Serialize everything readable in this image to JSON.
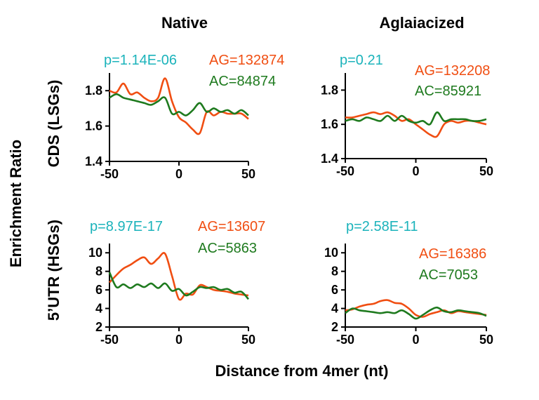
{
  "figure": {
    "col_titles": [
      "Native",
      "Aglaiacized"
    ],
    "row_titles": [
      "CDS (LSGs)",
      "5’UTR (HSGs)"
    ],
    "ylabel": "Enrichment Ratio",
    "xlabel": "Distance from 4mer (nt)"
  },
  "colors": {
    "AG": "#f04e12",
    "AC": "#1e7a1e",
    "pvalue": "#1bb3bb"
  },
  "chart_data": [
    {
      "type": "line",
      "id": "native-cds",
      "pvalue": "p=1.14E-06",
      "counts": [
        "AG=132874",
        "AC=84874"
      ],
      "xlim": [
        -50,
        50
      ],
      "ylim": [
        1.4,
        1.9
      ],
      "xticks": [
        -50,
        0,
        50
      ],
      "yticks": [
        1.4,
        1.6,
        1.8
      ],
      "x": [
        -50,
        -45,
        -40,
        -35,
        -30,
        -25,
        -20,
        -15,
        -10,
        -5,
        0,
        5,
        10,
        15,
        20,
        25,
        30,
        35,
        40,
        45,
        50
      ],
      "series": [
        {
          "name": "AG",
          "values": [
            1.8,
            1.79,
            1.84,
            1.78,
            1.79,
            1.76,
            1.74,
            1.76,
            1.87,
            1.74,
            1.65,
            1.62,
            1.58,
            1.56,
            1.68,
            1.66,
            1.68,
            1.67,
            1.67,
            1.67,
            1.64
          ]
        },
        {
          "name": "AC",
          "values": [
            1.76,
            1.78,
            1.76,
            1.75,
            1.74,
            1.73,
            1.72,
            1.74,
            1.76,
            1.67,
            1.68,
            1.66,
            1.69,
            1.73,
            1.68,
            1.7,
            1.68,
            1.69,
            1.67,
            1.69,
            1.66
          ]
        }
      ]
    },
    {
      "type": "line",
      "id": "aglaia-cds",
      "pvalue": "p=0.21",
      "counts": [
        "AG=132208",
        "AC=85921"
      ],
      "xlim": [
        -50,
        50
      ],
      "ylim": [
        1.4,
        1.9
      ],
      "xticks": [
        -50,
        0,
        50
      ],
      "yticks": [
        1.4,
        1.6,
        1.8
      ],
      "x": [
        -50,
        -45,
        -40,
        -35,
        -30,
        -25,
        -20,
        -15,
        -10,
        -5,
        0,
        5,
        10,
        15,
        20,
        25,
        30,
        35,
        40,
        45,
        50
      ],
      "series": [
        {
          "name": "AG",
          "values": [
            1.64,
            1.64,
            1.65,
            1.66,
            1.67,
            1.66,
            1.67,
            1.65,
            1.62,
            1.63,
            1.6,
            1.57,
            1.54,
            1.53,
            1.6,
            1.62,
            1.61,
            1.62,
            1.62,
            1.61,
            1.6
          ]
        },
        {
          "name": "AC",
          "values": [
            1.62,
            1.63,
            1.62,
            1.64,
            1.63,
            1.62,
            1.65,
            1.62,
            1.65,
            1.62,
            1.61,
            1.62,
            1.6,
            1.67,
            1.62,
            1.63,
            1.63,
            1.63,
            1.62,
            1.62,
            1.63
          ]
        }
      ]
    },
    {
      "type": "line",
      "id": "native-utr",
      "pvalue": "p=8.97E-17",
      "counts": [
        "AG=13607",
        "AC=5863"
      ],
      "xlim": [
        -50,
        50
      ],
      "ylim": [
        2,
        11
      ],
      "xticks": [
        -50,
        0,
        50
      ],
      "yticks": [
        2,
        4,
        6,
        8,
        10
      ],
      "x": [
        -50,
        -45,
        -40,
        -35,
        -30,
        -25,
        -20,
        -15,
        -10,
        -5,
        0,
        5,
        10,
        15,
        20,
        25,
        30,
        35,
        40,
        45,
        50
      ],
      "series": [
        {
          "name": "AG",
          "values": [
            6.8,
            7.6,
            8.3,
            8.7,
            9.2,
            9.5,
            8.8,
            9.4,
            9.9,
            7.5,
            5.0,
            5.6,
            5.5,
            6.5,
            6.3,
            6.0,
            5.9,
            5.8,
            5.6,
            5.5,
            5.4
          ]
        },
        {
          "name": "AC",
          "values": [
            7.9,
            6.3,
            6.6,
            6.2,
            6.6,
            6.3,
            6.7,
            6.2,
            6.7,
            5.9,
            6.1,
            5.4,
            5.8,
            6.3,
            6.2,
            6.3,
            6.0,
            6.1,
            5.7,
            5.8,
            5.0
          ]
        }
      ]
    },
    {
      "type": "line",
      "id": "aglaia-utr",
      "pvalue": "p=2.58E-11",
      "counts": [
        "AG=16386",
        "AC=7053"
      ],
      "xlim": [
        -50,
        50
      ],
      "ylim": [
        2,
        11
      ],
      "xticks": [
        -50,
        0,
        50
      ],
      "yticks": [
        2,
        4,
        6,
        8,
        10
      ],
      "x": [
        -50,
        -45,
        -40,
        -35,
        -30,
        -25,
        -20,
        -15,
        -10,
        -5,
        0,
        5,
        10,
        15,
        20,
        25,
        30,
        35,
        40,
        45,
        50
      ],
      "series": [
        {
          "name": "AG",
          "values": [
            3.8,
            3.9,
            4.2,
            4.4,
            4.5,
            4.8,
            4.9,
            4.6,
            4.5,
            4.0,
            3.3,
            3.1,
            3.4,
            3.6,
            3.8,
            3.5,
            3.7,
            3.6,
            3.5,
            3.4,
            3.3
          ]
        },
        {
          "name": "AC",
          "values": [
            3.5,
            4.0,
            3.8,
            3.7,
            3.6,
            3.5,
            3.6,
            3.5,
            3.8,
            3.4,
            2.9,
            3.3,
            3.8,
            4.1,
            3.7,
            3.6,
            3.8,
            3.7,
            3.6,
            3.5,
            3.2
          ]
        }
      ]
    }
  ]
}
